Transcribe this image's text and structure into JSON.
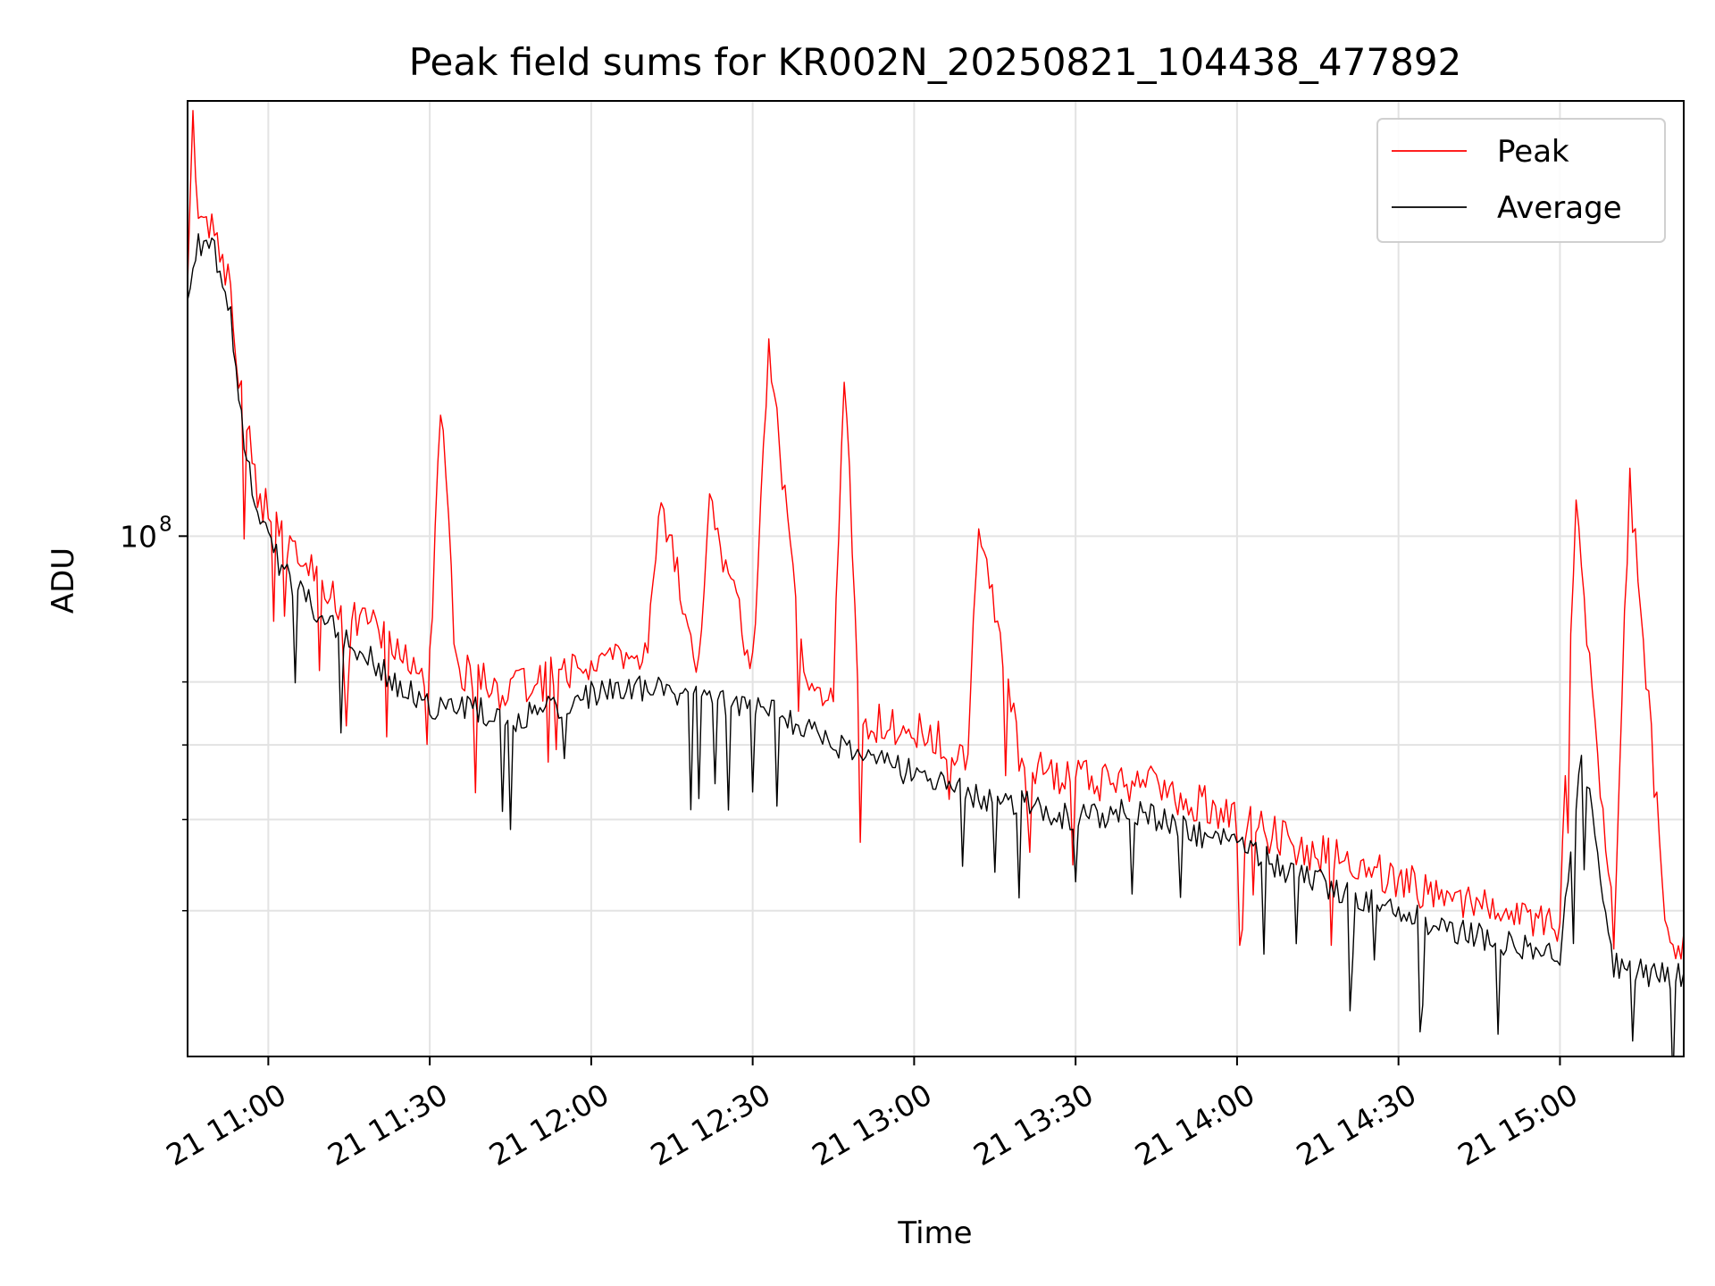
{
  "chart_data": {
    "type": "line",
    "title": "Peak field sums for KR002N_20250821_104438_477892",
    "xlabel": "Time",
    "ylabel": "ADU",
    "x_scale": "time",
    "y_scale": "log",
    "xlim": [
      "2025-08-21 10:45",
      "2025-08-21 15:23"
    ],
    "ylim": [
      28000000,
      290000000
    ],
    "x_ticks": [
      {
        "value": "2025-08-21 11:00",
        "label": "21 11:00"
      },
      {
        "value": "2025-08-21 11:30",
        "label": "21 11:30"
      },
      {
        "value": "2025-08-21 12:00",
        "label": "21 12:00"
      },
      {
        "value": "2025-08-21 12:30",
        "label": "21 12:30"
      },
      {
        "value": "2025-08-21 13:00",
        "label": "21 13:00"
      },
      {
        "value": "2025-08-21 13:30",
        "label": "21 13:30"
      },
      {
        "value": "2025-08-21 14:00",
        "label": "21 14:00"
      },
      {
        "value": "2025-08-21 14:30",
        "label": "21 14:30"
      },
      {
        "value": "2025-08-21 15:00",
        "label": "21 15:00"
      }
    ],
    "y_major_ticks": [
      {
        "value": 100000000,
        "label_base": "10",
        "label_exp": "8"
      }
    ],
    "y_minor_gridlines": [
      40000000,
      50000000,
      60000000,
      70000000
    ],
    "grid": true,
    "legend": {
      "position": "top-right"
    },
    "series": [
      {
        "name": "Peak",
        "color": "#ff0000",
        "x": [
          "2025-08-21 10:45",
          "2025-08-21 10:46",
          "2025-08-21 10:47",
          "2025-08-21 10:50",
          "2025-08-21 10:53",
          "2025-08-21 10:55",
          "2025-08-21 10:58",
          "2025-08-21 11:00",
          "2025-08-21 11:05",
          "2025-08-21 11:10",
          "2025-08-21 11:15",
          "2025-08-21 11:20",
          "2025-08-21 11:25",
          "2025-08-21 11:30",
          "2025-08-21 11:32",
          "2025-08-21 11:35",
          "2025-08-21 11:40",
          "2025-08-21 11:45",
          "2025-08-21 11:50",
          "2025-08-21 12:00",
          "2025-08-21 12:10",
          "2025-08-21 12:13",
          "2025-08-21 12:20",
          "2025-08-21 12:22",
          "2025-08-21 12:30",
          "2025-08-21 12:33",
          "2025-08-21 12:40",
          "2025-08-21 12:45",
          "2025-08-21 12:47",
          "2025-08-21 12:50",
          "2025-08-21 13:00",
          "2025-08-21 13:10",
          "2025-08-21 13:12",
          "2025-08-21 13:20",
          "2025-08-21 13:30",
          "2025-08-21 13:40",
          "2025-08-21 13:50",
          "2025-08-21 14:00",
          "2025-08-21 14:10",
          "2025-08-21 14:20",
          "2025-08-21 14:30",
          "2025-08-21 14:40",
          "2025-08-21 14:50",
          "2025-08-21 15:00",
          "2025-08-21 15:03",
          "2025-08-21 15:10",
          "2025-08-21 15:13",
          "2025-08-21 15:20",
          "2025-08-21 15:23"
        ],
        "values": [
          185000000,
          290000000,
          215000000,
          212000000,
          180000000,
          140000000,
          112000000,
          105000000,
          95000000,
          88000000,
          83000000,
          79000000,
          74000000,
          72000000,
          140000000,
          72000000,
          70000000,
          68000000,
          70000000,
          73000000,
          74000000,
          108000000,
          72000000,
          110000000,
          72000000,
          160000000,
          68000000,
          68000000,
          150000000,
          64000000,
          62000000,
          59000000,
          102000000,
          57000000,
          55000000,
          55000000,
          53000000,
          50000000,
          47000000,
          45000000,
          43000000,
          41000000,
          40000000,
          39000000,
          108000000,
          38000000,
          115000000,
          37000000,
          37000000
        ]
      },
      {
        "name": "Average",
        "color": "#000000",
        "x": [
          "2025-08-21 10:45",
          "2025-08-21 10:47",
          "2025-08-21 10:50",
          "2025-08-21 10:53",
          "2025-08-21 10:55",
          "2025-08-21 10:58",
          "2025-08-21 11:00",
          "2025-08-21 11:05",
          "2025-08-21 11:10",
          "2025-08-21 11:15",
          "2025-08-21 11:20",
          "2025-08-21 11:25",
          "2025-08-21 11:30",
          "2025-08-21 11:35",
          "2025-08-21 11:40",
          "2025-08-21 11:45",
          "2025-08-21 11:50",
          "2025-08-21 12:00",
          "2025-08-21 12:10",
          "2025-08-21 12:20",
          "2025-08-21 12:30",
          "2025-08-21 12:40",
          "2025-08-21 12:50",
          "2025-08-21 13:00",
          "2025-08-21 13:10",
          "2025-08-21 13:20",
          "2025-08-21 13:30",
          "2025-08-21 13:40",
          "2025-08-21 13:50",
          "2025-08-21 14:00",
          "2025-08-21 14:10",
          "2025-08-21 14:20",
          "2025-08-21 14:30",
          "2025-08-21 14:40",
          "2025-08-21 14:50",
          "2025-08-21 15:00",
          "2025-08-21 15:04",
          "2025-08-21 15:10",
          "2025-08-21 15:20",
          "2025-08-21 15:23"
        ],
        "values": [
          175000000,
          205000000,
          200000000,
          170000000,
          132000000,
          106000000,
          98000000,
          88000000,
          82000000,
          77000000,
          73000000,
          69000000,
          66000000,
          66000000,
          65000000,
          63000000,
          65000000,
          68000000,
          69000000,
          67000000,
          66000000,
          63000000,
          58000000,
          56000000,
          53000000,
          52000000,
          50000000,
          51000000,
          49000000,
          47000000,
          44000000,
          42000000,
          40000000,
          38000000,
          37000000,
          36000000,
          60000000,
          35000000,
          34000000,
          34000000
        ]
      }
    ]
  }
}
